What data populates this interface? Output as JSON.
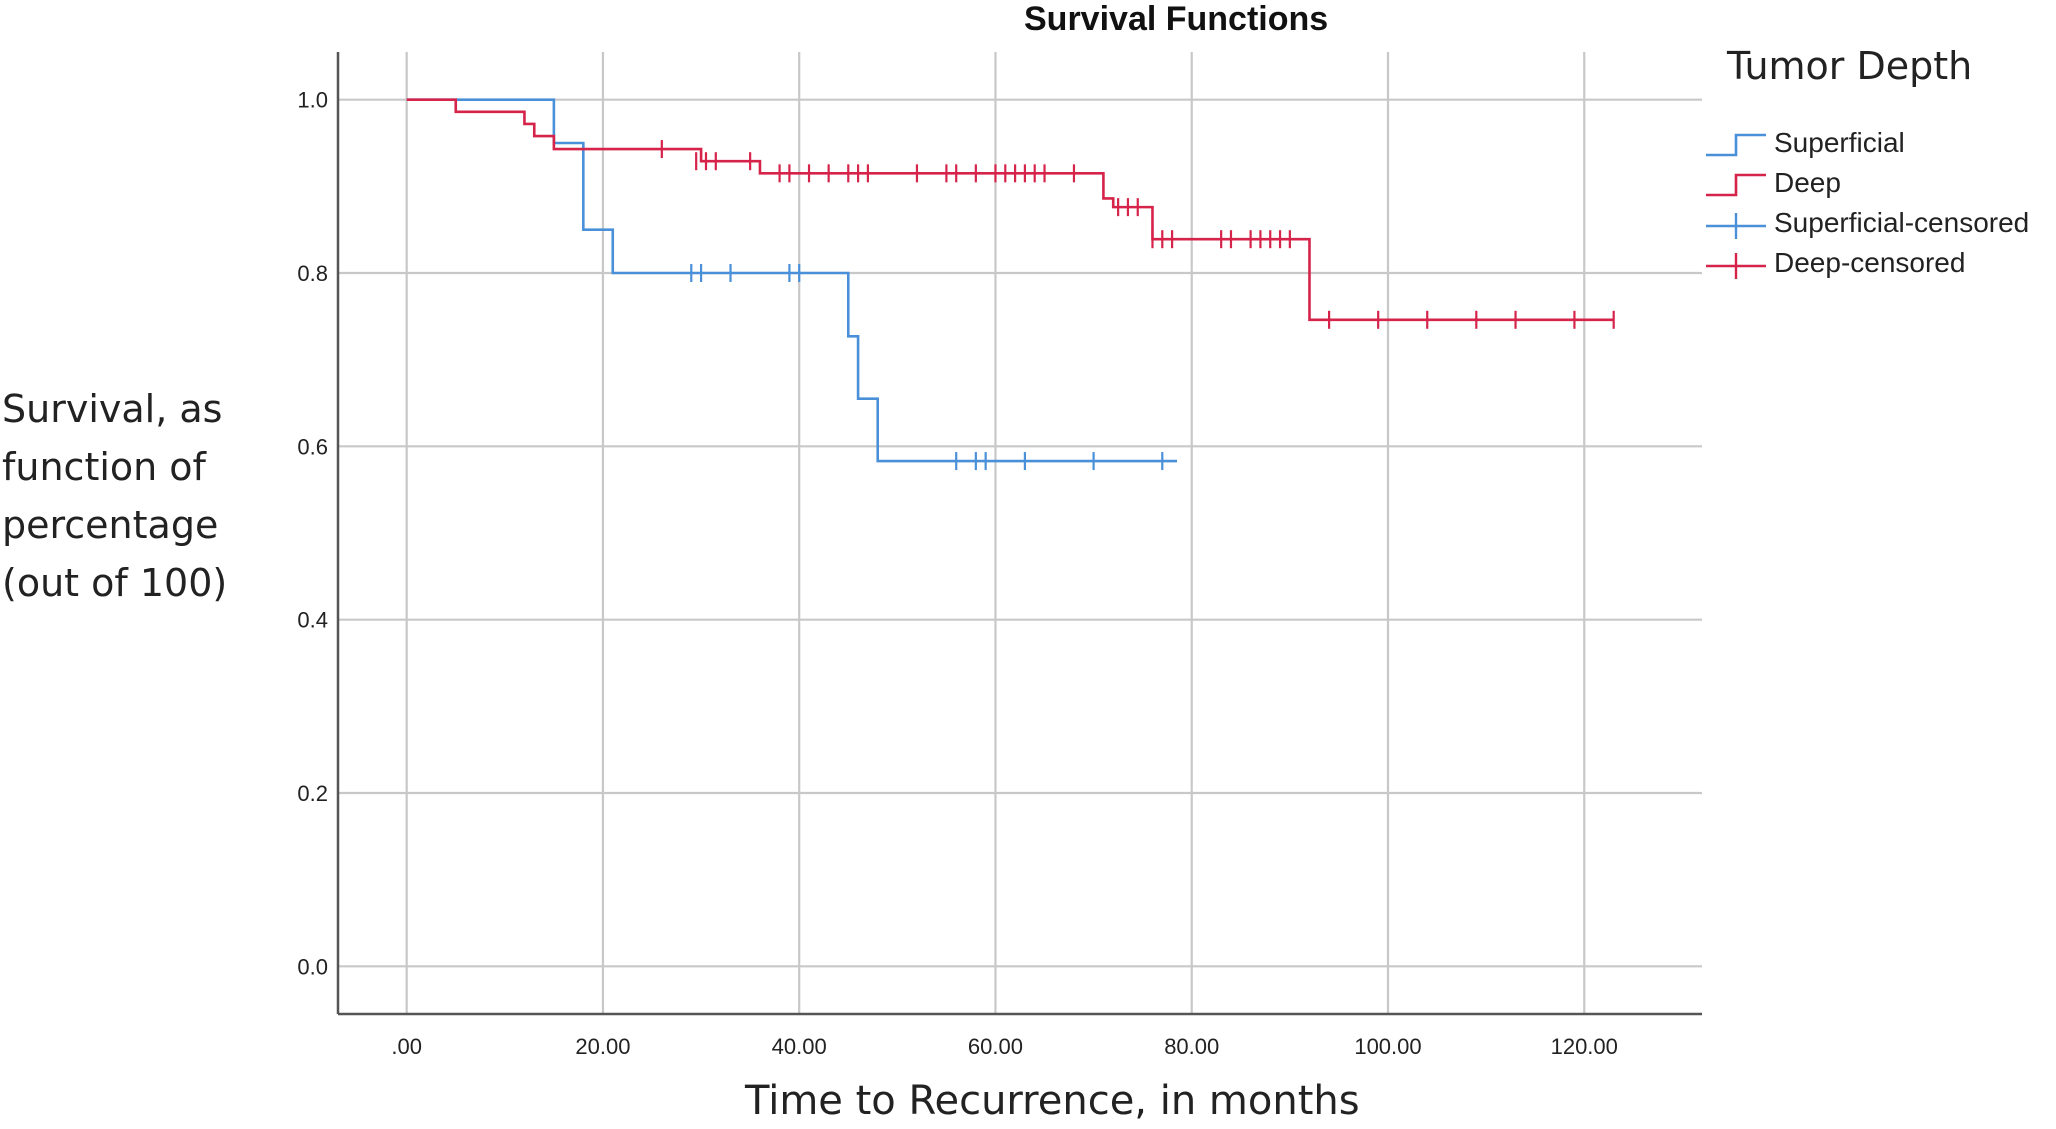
{
  "chart_data": {
    "type": "line",
    "title": "Survival Functions",
    "xlabel": "Time to Recurrence, in months",
    "ylabel_lines": [
      "Survival, as",
      "function of",
      "percentage",
      "(out of 100)"
    ],
    "xlim": [
      -7,
      132
    ],
    "ylim": [
      -0.055,
      1.055
    ],
    "x_ticks": [
      0,
      20,
      40,
      60,
      80,
      100,
      120
    ],
    "x_tick_labels": [
      ".00",
      "20.00",
      "40.00",
      "60.00",
      "80.00",
      "100.00",
      "120.00"
    ],
    "y_ticks": [
      0.0,
      0.2,
      0.4,
      0.6,
      0.8,
      1.0
    ],
    "y_tick_labels": [
      "0.0",
      "0.2",
      "0.4",
      "0.6",
      "0.8",
      "1.0"
    ],
    "grid": true,
    "legend_position": "top-right",
    "legend_title": "Tumor Depth",
    "legend": [
      "Superficial",
      "Deep",
      "Superficial-censored",
      "Deep-censored"
    ],
    "series": [
      {
        "name": "Superficial",
        "color": "#4a90d9",
        "steps": [
          [
            0,
            1.0
          ],
          [
            15,
            0.95
          ],
          [
            18,
            0.85
          ],
          [
            21,
            0.8
          ],
          [
            45,
            0.727
          ],
          [
            46,
            0.655
          ],
          [
            48,
            0.583
          ],
          [
            78.5,
            0.583
          ]
        ],
        "censored": [
          [
            29,
            0.8
          ],
          [
            30,
            0.8
          ],
          [
            33,
            0.8
          ],
          [
            39,
            0.8
          ],
          [
            40,
            0.8
          ],
          [
            56,
            0.583
          ],
          [
            58,
            0.583
          ],
          [
            59,
            0.583
          ],
          [
            63,
            0.583
          ],
          [
            70,
            0.583
          ],
          [
            77,
            0.583
          ]
        ]
      },
      {
        "name": "Deep",
        "color": "#d6234a",
        "steps": [
          [
            0,
            1.0
          ],
          [
            5,
            0.986
          ],
          [
            12,
            0.972
          ],
          [
            13,
            0.958
          ],
          [
            15,
            0.943
          ],
          [
            30,
            0.929
          ],
          [
            36,
            0.915
          ],
          [
            71,
            0.886
          ],
          [
            72,
            0.876
          ],
          [
            76,
            0.839
          ],
          [
            92,
            0.746
          ],
          [
            123,
            0.746
          ]
        ],
        "censored": [
          [
            26,
            0.943
          ],
          [
            29.5,
            0.929
          ],
          [
            30.5,
            0.929
          ],
          [
            31.5,
            0.929
          ],
          [
            35,
            0.929
          ],
          [
            38,
            0.915
          ],
          [
            39,
            0.915
          ],
          [
            41,
            0.915
          ],
          [
            43,
            0.915
          ],
          [
            45,
            0.915
          ],
          [
            46,
            0.915
          ],
          [
            47,
            0.915
          ],
          [
            52,
            0.915
          ],
          [
            55,
            0.915
          ],
          [
            56,
            0.915
          ],
          [
            58,
            0.915
          ],
          [
            60,
            0.915
          ],
          [
            61,
            0.915
          ],
          [
            62,
            0.915
          ],
          [
            63,
            0.915
          ],
          [
            64,
            0.915
          ],
          [
            65,
            0.915
          ],
          [
            68,
            0.915
          ],
          [
            72.5,
            0.876
          ],
          [
            73.5,
            0.876
          ],
          [
            74.5,
            0.876
          ],
          [
            76,
            0.839
          ],
          [
            77,
            0.839
          ],
          [
            78,
            0.839
          ],
          [
            83,
            0.839
          ],
          [
            84,
            0.839
          ],
          [
            86,
            0.839
          ],
          [
            87,
            0.839
          ],
          [
            88,
            0.839
          ],
          [
            89,
            0.839
          ],
          [
            90,
            0.839
          ],
          [
            94,
            0.746
          ],
          [
            99,
            0.746
          ],
          [
            104,
            0.746
          ],
          [
            109,
            0.746
          ],
          [
            113,
            0.746
          ],
          [
            119,
            0.746
          ],
          [
            123,
            0.746
          ]
        ]
      }
    ]
  }
}
